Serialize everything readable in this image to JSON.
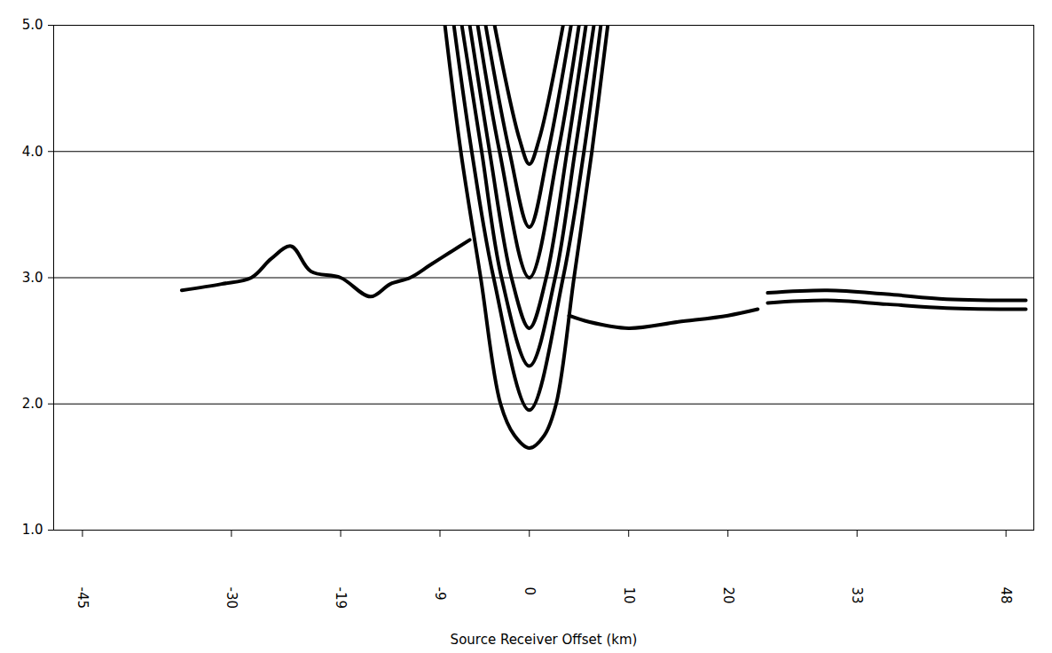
{
  "chart_data": {
    "type": "line",
    "xlabel": "Source Receiver Offset (km)",
    "xlim": [
      -47.9,
      50.8
    ],
    "xticks": [
      -45,
      -30,
      -19,
      -9,
      0,
      10,
      20,
      33,
      48
    ],
    "ylim": [
      1.0,
      5.0
    ],
    "yticks": [
      {
        "value": 1.0,
        "label": "1.0"
      },
      {
        "value": 2.0,
        "label": "2.0"
      },
      {
        "value": 3.0,
        "label": "3.0"
      },
      {
        "value": 4.0,
        "label": "4.0"
      },
      {
        "value": 5.0,
        "label": "5.0"
      }
    ],
    "grid": true,
    "series": [
      {
        "color": "#000000",
        "x": [
          -8.5,
          -6.9,
          -4.9,
          -2.9,
          -1.5,
          0,
          1.5,
          2.7,
          4.5,
          6.3,
          7.9
        ],
        "values": [
          5.0,
          4.0,
          3.0,
          2.0,
          1.75,
          1.65,
          1.75,
          2.0,
          3.0,
          4.0,
          5.0
        ]
      },
      {
        "color": "#000000",
        "x": [
          -7.6,
          -5.8,
          -3.6,
          0,
          3.4,
          5.5,
          7.2
        ],
        "values": [
          5.0,
          4.0,
          3.0,
          1.95,
          3.0,
          4.0,
          5.0
        ]
      },
      {
        "color": "#000000",
        "x": [
          -6.8,
          -4.8,
          -2.8,
          0,
          2.6,
          4.6,
          6.5
        ],
        "values": [
          5.0,
          4.0,
          3.0,
          2.3,
          3.0,
          4.0,
          5.0
        ]
      },
      {
        "color": "#000000",
        "x": [
          -6.0,
          -4.0,
          -1.8,
          0,
          1.7,
          3.8,
          5.7
        ],
        "values": [
          5.0,
          4.0,
          3.0,
          2.6,
          3.0,
          4.0,
          5.0
        ]
      },
      {
        "color": "#000000",
        "x": [
          -5.2,
          -3.0,
          0,
          2.9,
          5.0
        ],
        "values": [
          5.0,
          4.0,
          3.0,
          4.0,
          5.0
        ]
      },
      {
        "color": "#000000",
        "x": [
          -4.4,
          -2.0,
          0,
          1.9,
          4.2
        ],
        "values": [
          5.0,
          4.0,
          3.4,
          4.0,
          5.0
        ]
      },
      {
        "color": "#000000",
        "x": [
          -3.5,
          -1.0,
          0,
          1.0,
          3.4
        ],
        "values": [
          5.0,
          4.1,
          3.9,
          4.1,
          5.0
        ]
      },
      {
        "color": "#000000",
        "x": [
          4,
          6,
          10,
          15,
          20,
          23
        ],
        "values": [
          2.7,
          2.65,
          2.6,
          2.65,
          2.7,
          2.75
        ]
      },
      {
        "color": "#000000",
        "x": [
          24,
          30,
          36,
          42,
          50
        ],
        "values": [
          2.88,
          2.9,
          2.87,
          2.83,
          2.82
        ]
      },
      {
        "color": "#000000",
        "x": [
          24,
          30,
          36,
          42,
          50
        ],
        "values": [
          2.8,
          2.82,
          2.79,
          2.76,
          2.75
        ]
      },
      {
        "color": "#000000",
        "x": [
          -35,
          -31,
          -28,
          -26,
          -24,
          -22,
          -19,
          -16,
          -14,
          -12,
          -10,
          -8,
          -6
        ],
        "values": [
          2.9,
          2.95,
          3.0,
          3.15,
          3.25,
          3.05,
          3.0,
          2.85,
          2.95,
          3.0,
          3.1,
          3.2,
          3.3
        ]
      }
    ]
  }
}
